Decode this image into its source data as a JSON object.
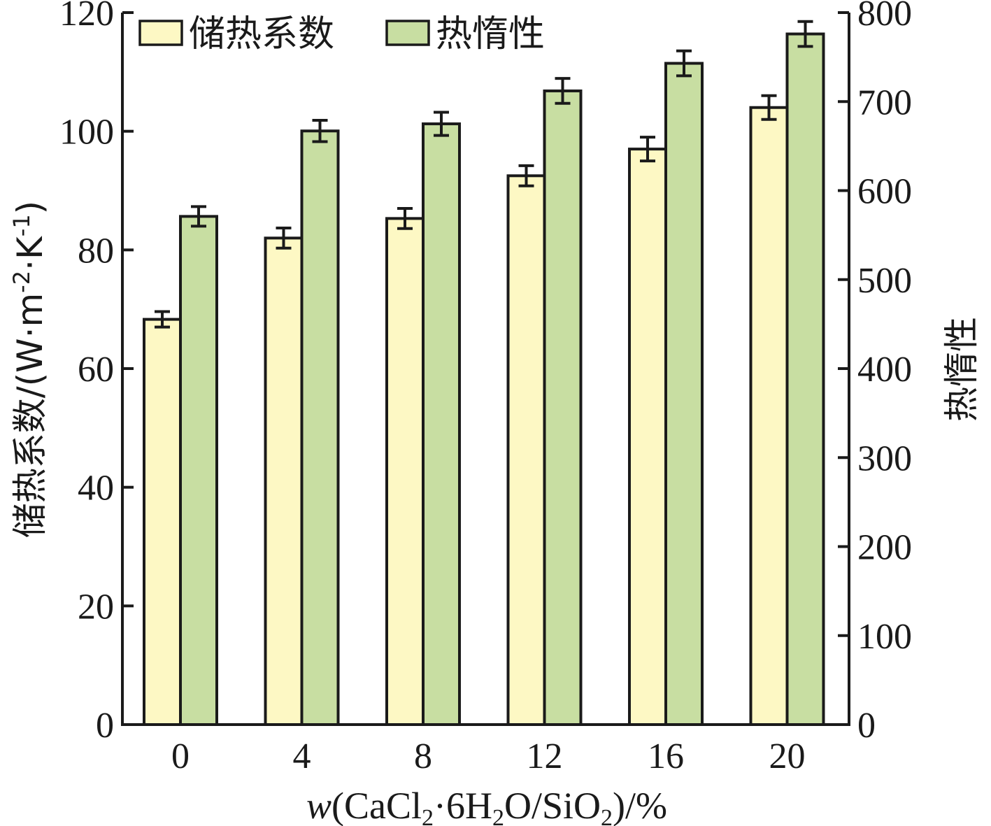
{
  "chart_data": {
    "type": "bar",
    "categories": [
      "0",
      "4",
      "8",
      "12",
      "16",
      "20"
    ],
    "series": [
      {
        "name": "储热系数",
        "axis": "left",
        "color": "#fdf8c4",
        "values": [
          68.3,
          82.0,
          85.3,
          92.5,
          97.0,
          104.0
        ],
        "errors": [
          1.3,
          1.7,
          1.7,
          1.7,
          2.0,
          2.0
        ]
      },
      {
        "name": "热惰性",
        "axis": "right",
        "color": "#c8deA2",
        "values": [
          571,
          667,
          675,
          712,
          743,
          776
        ],
        "errors": [
          11,
          12,
          13,
          14,
          14,
          14
        ]
      }
    ],
    "y_left": {
      "label": "储热系数/(W·m",
      "label_sup1": "-2",
      "label_mid": "·K",
      "label_sup2": "-1",
      "label_end": ")",
      "lim": [
        0,
        120
      ],
      "ticks": [
        "0",
        "20",
        "40",
        "60",
        "80",
        "100",
        "120"
      ]
    },
    "y_right": {
      "label": "热惰性",
      "lim": [
        0,
        800
      ],
      "ticks": [
        "0",
        "100",
        "200",
        "300",
        "400",
        "500",
        "600",
        "700",
        "800"
      ]
    },
    "x_axis": {
      "label_pre": "w",
      "label_a": "(CaCl",
      "sub1": "2",
      "label_b": "·6H",
      "sub2": "2",
      "label_c": "O/SiO",
      "sub3": "2",
      "label_d": ")/%"
    },
    "legend": {
      "position": "top-left"
    },
    "grid": false
  }
}
